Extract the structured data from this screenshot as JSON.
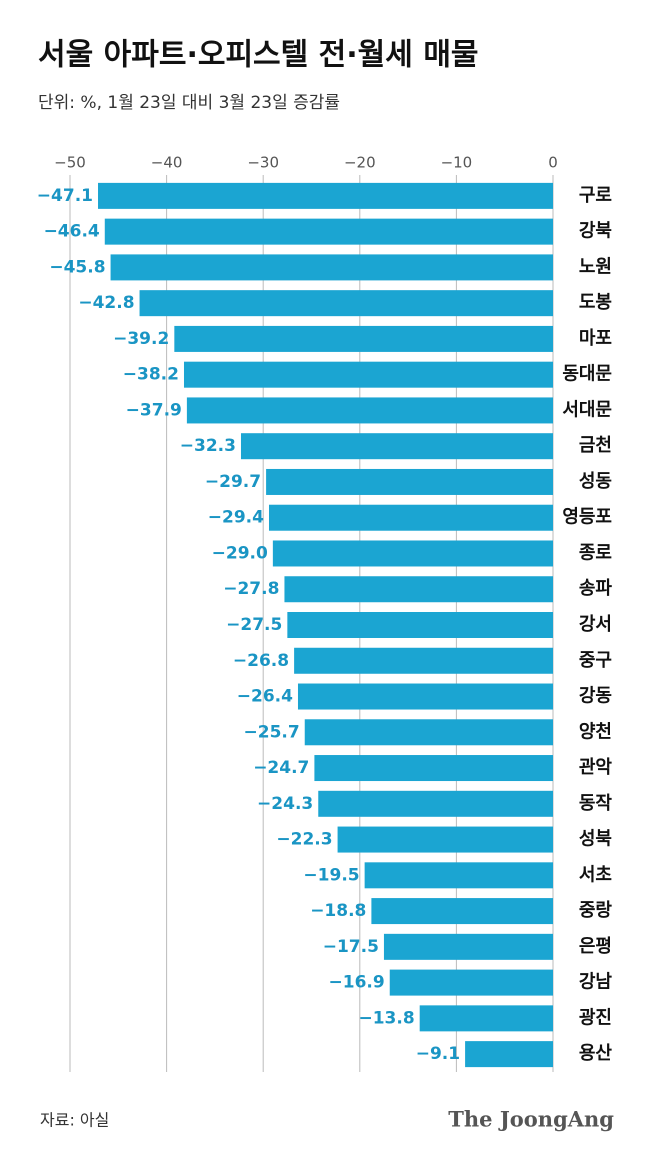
{
  "chart_data": {
    "type": "bar",
    "orientation": "horizontal",
    "title": "서울 아파트·오피스텔 전·월세 매물",
    "subtitle": "단위: %, 1월 23일 대비 3월 23일 증감률",
    "categories": [
      "구로",
      "강북",
      "노원",
      "도봉",
      "마포",
      "동대문",
      "서대문",
      "금천",
      "성동",
      "영등포",
      "종로",
      "송파",
      "강서",
      "중구",
      "강동",
      "양천",
      "관악",
      "동작",
      "성북",
      "서초",
      "중랑",
      "은평",
      "강남",
      "광진",
      "용산"
    ],
    "values": [
      -47.1,
      -46.4,
      -45.8,
      -42.8,
      -39.2,
      -38.2,
      -37.9,
      -32.3,
      -29.7,
      -29.4,
      -29.0,
      -27.8,
      -27.5,
      -26.8,
      -26.4,
      -25.7,
      -24.7,
      -24.3,
      -22.3,
      -19.5,
      -18.8,
      -17.5,
      -16.9,
      -13.8,
      -9.1
    ],
    "value_labels": [
      "−47.1",
      "−46.4",
      "−45.8",
      "−42.8",
      "−39.2",
      "−38.2",
      "−37.9",
      "−32.3",
      "−29.7",
      "−29.4",
      "−29.0",
      "−27.8",
      "−27.5",
      "−26.8",
      "−26.4",
      "−25.7",
      "−24.7",
      "−24.3",
      "−22.3",
      "−19.5",
      "−18.8",
      "−17.5",
      "−16.9",
      "−13.8",
      "−9.1"
    ],
    "color": "#1ba5d2",
    "label_color": "#1a95c4",
    "xlim": [
      -50,
      0
    ],
    "xticks": [
      {
        "value": -50,
        "label": "−50"
      },
      {
        "value": -40,
        "label": "−40"
      },
      {
        "value": -30,
        "label": "−30"
      },
      {
        "value": -20,
        "label": "−20"
      },
      {
        "value": -10,
        "label": "−10"
      },
      0
    ],
    "grid": true
  },
  "footer": {
    "source": "자료: 아실",
    "brand": "The JoongAng"
  }
}
